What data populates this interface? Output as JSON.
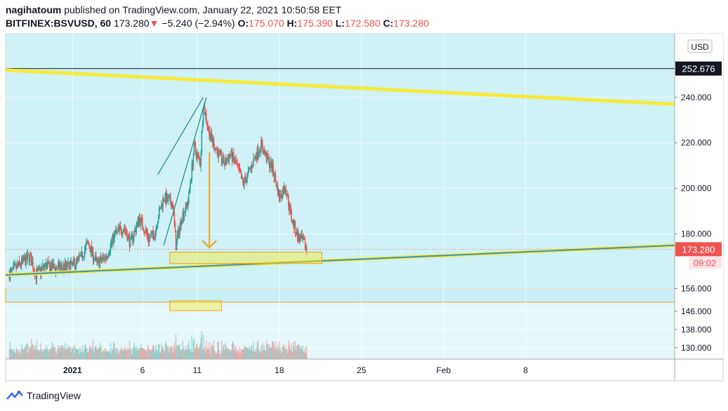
{
  "header": {
    "author": "nagihatoum",
    "published_text": " published on TradingView.com, January 22, 2021 10:50:58 EET",
    "symbol": "BITFINEX:BSVUSD, 60",
    "last": "173.280",
    "change_arrow": "▼",
    "change": "−5.240 (−2.94%)",
    "o_label": "O:",
    "o_value": "175.070",
    "h_label": "H:",
    "h_value": "175.390",
    "l_label": "L:",
    "l_value": "172.580",
    "c_label": "C:",
    "c_value": "173.280"
  },
  "footer": {
    "brand": "TradingView",
    "logo_icon": "tradingview-logo-icon"
  },
  "colors": {
    "up": "#26a69a",
    "down": "#ef5350",
    "trend": "#f5eb3a",
    "support_line": "#3b8fd0",
    "price_label": "#ef5350",
    "arrow": "#f0a020"
  },
  "chart_data": {
    "type": "candlestick",
    "currency_button": "USD",
    "ylim": [
      125,
      268
    ],
    "y_ticks": [
      "130.000",
      "138.000",
      "146.000",
      "156.000",
      "180.000",
      "200.000",
      "220.000",
      "240.000"
    ],
    "x_ticks": [
      "2021",
      "6",
      "11",
      "18",
      "25",
      "Feb",
      "8"
    ],
    "price_labels": {
      "level": "252.676",
      "last": "173.280",
      "countdown": "09:02"
    },
    "ohlc_path": [
      [
        1,
        162
      ],
      [
        5,
        167
      ],
      [
        8,
        170
      ],
      [
        10,
        162
      ],
      [
        13,
        166
      ],
      [
        17,
        165
      ],
      [
        22,
        166
      ],
      [
        25,
        170
      ],
      [
        27,
        176
      ],
      [
        30,
        167
      ],
      [
        33,
        170
      ],
      [
        36,
        180
      ],
      [
        39,
        183
      ],
      [
        41,
        176
      ],
      [
        44,
        187
      ],
      [
        47,
        178
      ],
      [
        49,
        180
      ],
      [
        50,
        187
      ],
      [
        52,
        196
      ],
      [
        55,
        193
      ],
      [
        56,
        175
      ],
      [
        58,
        188
      ],
      [
        60,
        194
      ],
      [
        62,
        218
      ],
      [
        64,
        211
      ],
      [
        65,
        237
      ],
      [
        67,
        224
      ],
      [
        70,
        215
      ],
      [
        72,
        211
      ],
      [
        74,
        215
      ],
      [
        76,
        210
      ],
      [
        78,
        202
      ],
      [
        80,
        207
      ],
      [
        82,
        214
      ],
      [
        84,
        219
      ],
      [
        86,
        213
      ],
      [
        88,
        208
      ],
      [
        90,
        196
      ],
      [
        92,
        201
      ],
      [
        94,
        187
      ],
      [
        96,
        179
      ],
      [
        98,
        176
      ],
      [
        99,
        173
      ]
    ],
    "horizontal_level": 252.676,
    "support_zone": [
      150,
      156
    ],
    "annotations": {
      "descending_trendline": [
        [
          0,
          252
        ],
        [
          220,
          237
        ]
      ],
      "ascending_trendline": [
        [
          0,
          162
        ],
        [
          220,
          175
        ]
      ],
      "rising_wedge": [
        [
          [
            52,
            175
          ],
          [
            66,
            240
          ]
        ],
        [
          [
            50,
            206
          ],
          [
            65,
            240
          ]
        ]
      ],
      "target_arrow": [
        [
          67,
          216
        ],
        [
          67,
          174
        ]
      ],
      "target_box": [
        [
          54,
          167
        ],
        [
          104,
          172
        ]
      ],
      "volume_box": [
        54,
        71
      ]
    },
    "volume_range": [
      0,
      100
    ]
  }
}
